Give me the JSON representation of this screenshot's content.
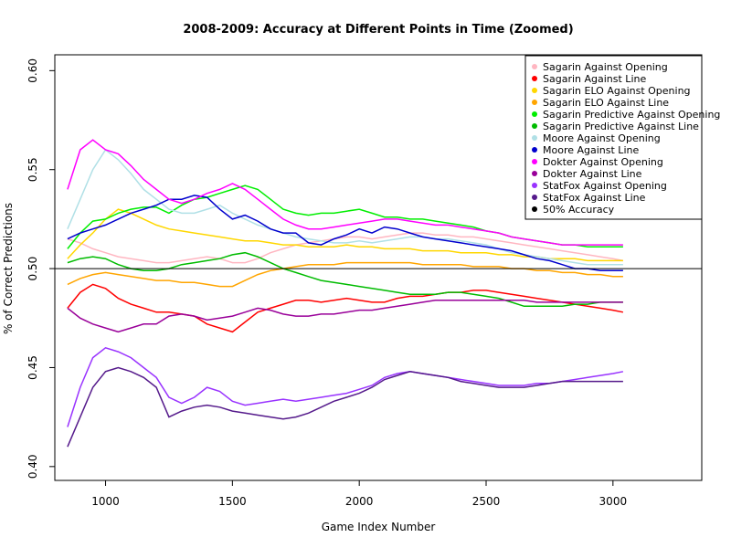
{
  "chart_data": {
    "type": "line",
    "title": "2008-2009: Accuracy at Different Points in Time (Zoomed)",
    "xlabel": "Game Index Number",
    "ylabel": "% of Correct Predictions",
    "xlim": [
      800,
      3350
    ],
    "ylim": [
      0.393,
      0.608
    ],
    "x_ticks": [
      1000,
      1500,
      2000,
      2500,
      3000
    ],
    "y_ticks": [
      0.4,
      0.45,
      0.5,
      0.55,
      0.6
    ],
    "x_tick_labels": [
      "1000",
      "1500",
      "2000",
      "2500",
      "3000"
    ],
    "y_tick_labels": [
      "0.40",
      "0.45",
      "0.50",
      "0.55",
      "0.60"
    ],
    "grid": false,
    "legend_position": "top-right",
    "reference_line": {
      "name": "50% Accuracy",
      "y": 0.5,
      "color": "#000000"
    },
    "x": [
      850,
      900,
      950,
      1000,
      1050,
      1100,
      1150,
      1200,
      1250,
      1300,
      1350,
      1400,
      1450,
      1500,
      1550,
      1600,
      1650,
      1700,
      1750,
      1800,
      1850,
      1900,
      1950,
      2000,
      2050,
      2100,
      2150,
      2200,
      2250,
      2300,
      2350,
      2400,
      2450,
      2500,
      2550,
      2600,
      2650,
      2700,
      2750,
      2800,
      2850,
      2900,
      2950,
      3000,
      3040
    ],
    "series": [
      {
        "name": "Sagarin Against Opening",
        "color": "#ffb6c1",
        "values": [
          0.515,
          0.513,
          0.51,
          0.508,
          0.506,
          0.505,
          0.504,
          0.503,
          0.503,
          0.504,
          0.505,
          0.506,
          0.505,
          0.503,
          0.503,
          0.505,
          0.508,
          0.51,
          0.512,
          0.513,
          0.514,
          0.515,
          0.516,
          0.516,
          0.515,
          0.516,
          0.517,
          0.518,
          0.518,
          0.517,
          0.517,
          0.516,
          0.516,
          0.515,
          0.514,
          0.513,
          0.512,
          0.511,
          0.51,
          0.509,
          0.508,
          0.507,
          0.506,
          0.505,
          0.504
        ]
      },
      {
        "name": "Sagarin Against Line",
        "color": "#ff0000",
        "values": [
          0.48,
          0.488,
          0.492,
          0.49,
          0.485,
          0.482,
          0.48,
          0.478,
          0.478,
          0.477,
          0.476,
          0.472,
          0.47,
          0.468,
          0.473,
          0.478,
          0.48,
          0.482,
          0.484,
          0.484,
          0.483,
          0.484,
          0.485,
          0.484,
          0.483,
          0.483,
          0.485,
          0.486,
          0.486,
          0.487,
          0.488,
          0.488,
          0.489,
          0.489,
          0.488,
          0.487,
          0.486,
          0.485,
          0.484,
          0.483,
          0.482,
          0.481,
          0.48,
          0.479,
          0.478
        ]
      },
      {
        "name": "Sagarin ELO Against Opening",
        "color": "#ffd700",
        "values": [
          0.505,
          0.512,
          0.518,
          0.525,
          0.53,
          0.528,
          0.525,
          0.522,
          0.52,
          0.519,
          0.518,
          0.517,
          0.516,
          0.515,
          0.514,
          0.514,
          0.513,
          0.512,
          0.512,
          0.511,
          0.511,
          0.511,
          0.512,
          0.511,
          0.511,
          0.51,
          0.51,
          0.51,
          0.509,
          0.509,
          0.509,
          0.508,
          0.508,
          0.508,
          0.507,
          0.507,
          0.506,
          0.506,
          0.505,
          0.505,
          0.505,
          0.504,
          0.504,
          0.504,
          0.504
        ]
      },
      {
        "name": "Sagarin ELO Against Line",
        "color": "#ffa500",
        "values": [
          0.492,
          0.495,
          0.497,
          0.498,
          0.497,
          0.496,
          0.495,
          0.494,
          0.494,
          0.493,
          0.493,
          0.492,
          0.491,
          0.491,
          0.494,
          0.497,
          0.499,
          0.5,
          0.501,
          0.502,
          0.502,
          0.502,
          0.503,
          0.503,
          0.503,
          0.503,
          0.503,
          0.503,
          0.502,
          0.502,
          0.502,
          0.502,
          0.501,
          0.501,
          0.501,
          0.5,
          0.5,
          0.499,
          0.499,
          0.498,
          0.498,
          0.497,
          0.497,
          0.496,
          0.496
        ]
      },
      {
        "name": "Sagarin Predictive Against Opening",
        "color": "#00ee00",
        "values": [
          0.51,
          0.518,
          0.524,
          0.525,
          0.528,
          0.53,
          0.531,
          0.531,
          0.528,
          0.532,
          0.535,
          0.536,
          0.538,
          0.54,
          0.542,
          0.54,
          0.535,
          0.53,
          0.528,
          0.527,
          0.528,
          0.528,
          0.529,
          0.53,
          0.528,
          0.526,
          0.526,
          0.525,
          0.525,
          0.524,
          0.523,
          0.522,
          0.521,
          0.519,
          0.518,
          0.516,
          0.515,
          0.514,
          0.513,
          0.512,
          0.512,
          0.511,
          0.511,
          0.511,
          0.511
        ]
      },
      {
        "name": "Sagarin Predictive Against Line",
        "color": "#00bb00",
        "values": [
          0.503,
          0.505,
          0.506,
          0.505,
          0.502,
          0.5,
          0.499,
          0.499,
          0.5,
          0.502,
          0.503,
          0.504,
          0.505,
          0.507,
          0.508,
          0.506,
          0.503,
          0.5,
          0.498,
          0.496,
          0.494,
          0.493,
          0.492,
          0.491,
          0.49,
          0.489,
          0.488,
          0.487,
          0.487,
          0.487,
          0.488,
          0.488,
          0.487,
          0.486,
          0.485,
          0.483,
          0.481,
          0.481,
          0.481,
          0.481,
          0.482,
          0.482,
          0.483,
          0.483,
          0.483
        ]
      },
      {
        "name": "Moore Against Opening",
        "color": "#b0e0e6",
        "values": [
          0.52,
          0.535,
          0.55,
          0.56,
          0.555,
          0.548,
          0.54,
          0.535,
          0.53,
          0.528,
          0.528,
          0.53,
          0.532,
          0.528,
          0.525,
          0.522,
          0.52,
          0.518,
          0.516,
          0.515,
          0.514,
          0.513,
          0.513,
          0.514,
          0.513,
          0.514,
          0.515,
          0.516,
          0.516,
          0.515,
          0.515,
          0.514,
          0.513,
          0.512,
          0.51,
          0.508,
          0.507,
          0.506,
          0.505,
          0.504,
          0.503,
          0.502,
          0.502,
          0.502,
          0.502
        ]
      },
      {
        "name": "Moore Against Line",
        "color": "#0000cd",
        "values": [
          0.515,
          0.518,
          0.52,
          0.522,
          0.525,
          0.528,
          0.53,
          0.532,
          0.535,
          0.535,
          0.537,
          0.536,
          0.53,
          0.525,
          0.527,
          0.524,
          0.52,
          0.518,
          0.518,
          0.513,
          0.512,
          0.515,
          0.517,
          0.52,
          0.518,
          0.521,
          0.52,
          0.518,
          0.516,
          0.515,
          0.514,
          0.513,
          0.512,
          0.511,
          0.51,
          0.509,
          0.507,
          0.505,
          0.504,
          0.502,
          0.5,
          0.5,
          0.499,
          0.499,
          0.499
        ]
      },
      {
        "name": "Dokter Against Opening",
        "color": "#ff00ff",
        "values": [
          0.54,
          0.56,
          0.565,
          0.56,
          0.558,
          0.552,
          0.545,
          0.54,
          0.535,
          0.533,
          0.535,
          0.538,
          0.54,
          0.543,
          0.54,
          0.535,
          0.53,
          0.525,
          0.522,
          0.52,
          0.52,
          0.521,
          0.522,
          0.523,
          0.524,
          0.525,
          0.525,
          0.524,
          0.523,
          0.522,
          0.522,
          0.521,
          0.52,
          0.519,
          0.518,
          0.516,
          0.515,
          0.514,
          0.513,
          0.512,
          0.512,
          0.512,
          0.512,
          0.512,
          0.512
        ]
      },
      {
        "name": "Dokter Against Line",
        "color": "#990099",
        "values": [
          0.48,
          0.475,
          0.472,
          0.47,
          0.468,
          0.47,
          0.472,
          0.472,
          0.476,
          0.477,
          0.476,
          0.474,
          0.475,
          0.476,
          0.478,
          0.48,
          0.479,
          0.477,
          0.476,
          0.476,
          0.477,
          0.477,
          0.478,
          0.479,
          0.479,
          0.48,
          0.481,
          0.482,
          0.483,
          0.484,
          0.484,
          0.484,
          0.484,
          0.484,
          0.484,
          0.484,
          0.484,
          0.483,
          0.483,
          0.483,
          0.483,
          0.483,
          0.483,
          0.483,
          0.483
        ]
      },
      {
        "name": "StatFox Against Opening",
        "color": "#9933ff",
        "values": [
          0.42,
          0.44,
          0.455,
          0.46,
          0.458,
          0.455,
          0.45,
          0.445,
          0.435,
          0.432,
          0.435,
          0.44,
          0.438,
          0.433,
          0.431,
          0.432,
          0.433,
          0.434,
          0.433,
          0.434,
          0.435,
          0.436,
          0.437,
          0.439,
          0.441,
          0.445,
          0.447,
          0.448,
          0.447,
          0.446,
          0.445,
          0.444,
          0.443,
          0.442,
          0.441,
          0.441,
          0.441,
          0.442,
          0.442,
          0.443,
          0.444,
          0.445,
          0.446,
          0.447,
          0.448
        ]
      },
      {
        "name": "StatFox Against Line",
        "color": "#551a8b",
        "values": [
          0.41,
          0.425,
          0.44,
          0.448,
          0.45,
          0.448,
          0.445,
          0.44,
          0.425,
          0.428,
          0.43,
          0.431,
          0.43,
          0.428,
          0.427,
          0.426,
          0.425,
          0.424,
          0.425,
          0.427,
          0.43,
          0.433,
          0.435,
          0.437,
          0.44,
          0.444,
          0.446,
          0.448,
          0.447,
          0.446,
          0.445,
          0.443,
          0.442,
          0.441,
          0.44,
          0.44,
          0.44,
          0.441,
          0.442,
          0.443,
          0.443,
          0.443,
          0.443,
          0.443,
          0.443
        ]
      }
    ]
  }
}
